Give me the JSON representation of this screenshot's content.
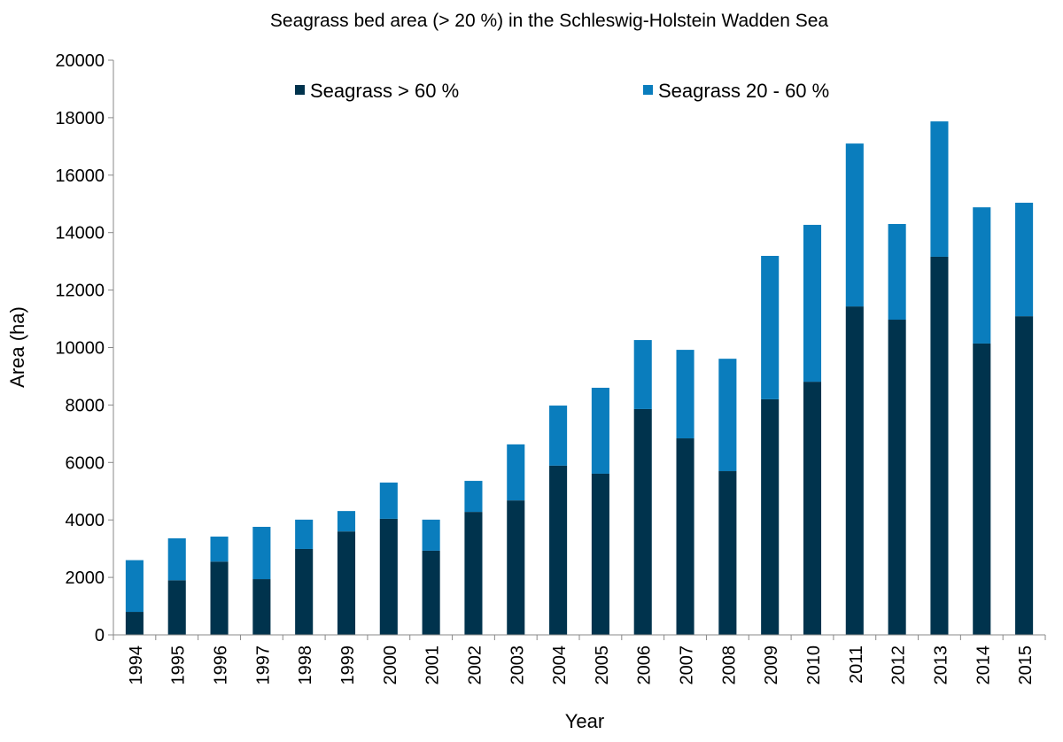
{
  "chart_data": {
    "type": "bar",
    "stacked": true,
    "title": "Seagrass bed area (> 20 %) in the Schleswig-Holstein Wadden Sea",
    "xlabel": "Year",
    "ylabel": "Area (ha)",
    "ylim": [
      0,
      20000
    ],
    "yticks": [
      "0",
      "2000",
      "4000",
      "6000",
      "8000",
      "10000",
      "12000",
      "14000",
      "16000",
      "18000",
      "20000"
    ],
    "grid": false,
    "legend_position": "top",
    "categories": [
      "1994",
      "1995",
      "1996",
      "1997",
      "1998",
      "1999",
      "2000",
      "2001",
      "2002",
      "2003",
      "2004",
      "2005",
      "2006",
      "2007",
      "2008",
      "2009",
      "2010",
      "2011",
      "2012",
      "2013",
      "2014",
      "2015"
    ],
    "series": [
      {
        "name": "Seagrass > 60 %",
        "color": "#00334d",
        "values": [
          800,
          1900,
          2550,
          1940,
          2990,
          3600,
          4040,
          2930,
          4280,
          4680,
          5890,
          5610,
          7860,
          6840,
          5700,
          8200,
          8810,
          11430,
          10970,
          13160,
          10140,
          11090
        ]
      },
      {
        "name": "Seagrass 20 - 60 %",
        "color": "#0a7dbd",
        "values": [
          1800,
          1460,
          870,
          1820,
          1020,
          710,
          1260,
          1080,
          1080,
          1950,
          2090,
          2990,
          2400,
          3080,
          3910,
          4990,
          5460,
          5670,
          3330,
          4710,
          4740,
          3950
        ]
      }
    ]
  }
}
